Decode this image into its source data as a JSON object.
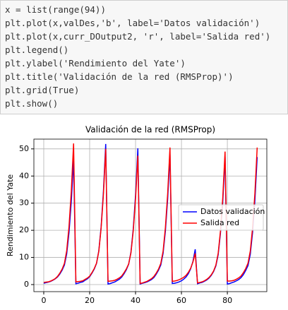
{
  "code": [
    "x = list(range(94))",
    "plt.plot(x,valDes,'b', label='Datos validación')",
    "plt.plot(x,curr_DOutput2, 'r', label='Salida red')",
    "plt.legend()",
    "plt.ylabel('Rendimiento del Yate')",
    "plt.title('Validación de la red (RMSProp)')",
    "plt.grid(True)",
    "plt.show()"
  ],
  "chart_data": {
    "type": "line",
    "title": "Validación de la red (RMSProp)",
    "ylabel": "Rendimiento del Yate",
    "x": [
      0,
      1,
      2,
      3,
      4,
      5,
      6,
      7,
      8,
      9,
      10,
      11,
      12,
      13,
      14,
      15,
      16,
      17,
      18,
      19,
      20,
      21,
      22,
      23,
      24,
      25,
      26,
      27,
      28,
      29,
      30,
      31,
      32,
      33,
      34,
      35,
      36,
      37,
      38,
      39,
      40,
      41,
      42,
      43,
      44,
      45,
      46,
      47,
      48,
      49,
      50,
      51,
      52,
      53,
      54,
      55,
      56,
      57,
      58,
      59,
      60,
      61,
      62,
      63,
      64,
      65,
      66,
      67,
      68,
      69,
      70,
      71,
      72,
      73,
      74,
      75,
      76,
      77,
      78,
      79,
      80,
      81,
      82,
      83,
      84,
      85,
      86,
      87,
      88,
      89,
      90,
      91,
      92,
      93
    ],
    "series": [
      {
        "name": "Datos validación",
        "color": "#0000ff",
        "values": [
          0.5,
          0.7,
          0.9,
          1.2,
          1.6,
          2.1,
          2.8,
          3.9,
          5.3,
          7.2,
          11.3,
          19.1,
          30.6,
          46.0,
          0.3,
          0.5,
          0.8,
          1.0,
          1.6,
          2.1,
          2.9,
          4.2,
          5.7,
          7.8,
          12.5,
          21.3,
          34.3,
          51.8,
          0.2,
          0.4,
          0.7,
          1.0,
          1.5,
          2.0,
          2.8,
          4.0,
          5.5,
          7.5,
          12.0,
          20.5,
          33.0,
          50.2,
          0.2,
          0.5,
          0.7,
          1.0,
          1.4,
          1.9,
          2.6,
          3.8,
          5.3,
          7.2,
          11.5,
          19.7,
          31.7,
          48.0,
          0.4,
          0.5,
          0.7,
          1.0,
          1.4,
          2.0,
          2.8,
          4.0,
          5.8,
          8.5,
          13.0,
          0.3,
          0.6,
          0.8,
          1.2,
          1.7,
          2.4,
          3.4,
          4.8,
          6.9,
          11.0,
          19.0,
          30.5,
          47.0,
          0.2,
          0.4,
          0.7,
          1.0,
          1.4,
          1.9,
          2.6,
          3.7,
          5.2,
          7.0,
          11.2,
          19.3,
          31.0,
          47.0
        ]
      },
      {
        "name": "Salida red",
        "color": "#ff0000",
        "values": [
          0.8,
          0.9,
          1.0,
          1.3,
          1.7,
          2.2,
          3.0,
          4.2,
          5.7,
          7.8,
          12.5,
          21.3,
          34.3,
          52.0,
          1.0,
          1.1,
          1.2,
          1.4,
          1.9,
          2.4,
          3.1,
          4.4,
          5.9,
          7.9,
          12.3,
          20.8,
          33.2,
          50.0,
          1.2,
          1.3,
          1.4,
          1.6,
          2.0,
          2.5,
          3.2,
          4.4,
          5.8,
          7.6,
          11.7,
          19.8,
          31.6,
          47.5,
          0.4,
          0.6,
          0.9,
          1.2,
          1.7,
          2.2,
          3.0,
          4.2,
          5.7,
          7.8,
          12.3,
          21.0,
          33.6,
          50.5,
          1.2,
          1.3,
          1.5,
          1.8,
          2.2,
          2.7,
          3.4,
          4.5,
          6.0,
          8.3,
          11.5,
          0.6,
          0.8,
          1.0,
          1.4,
          1.9,
          2.6,
          3.6,
          5.0,
          7.2,
          11.5,
          19.8,
          32.0,
          49.0,
          1.3,
          1.3,
          1.4,
          1.6,
          2.0,
          2.5,
          3.2,
          4.4,
          5.9,
          7.9,
          12.4,
          21.0,
          33.6,
          50.5
        ]
      }
    ],
    "xlim": [
      -4.3,
      97.2
    ],
    "xticks": [
      0,
      20,
      40,
      60,
      80
    ],
    "ylim": [
      -2.6,
      53.6
    ],
    "yticks": [
      0,
      10,
      20,
      30,
      40,
      50
    ],
    "grid": true,
    "legend": "center right"
  }
}
